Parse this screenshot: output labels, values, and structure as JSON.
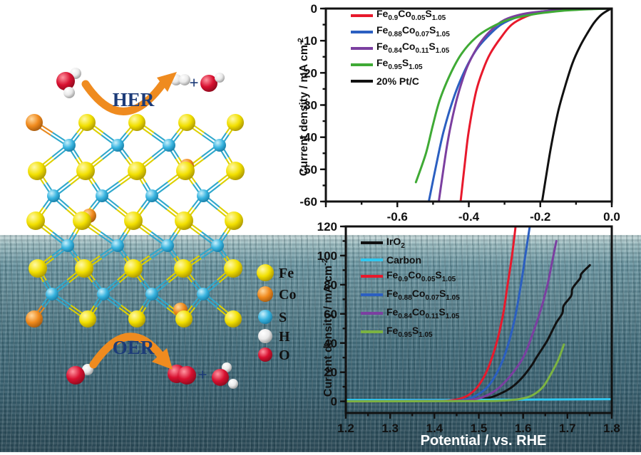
{
  "illustration": {
    "her": {
      "label": "HER",
      "plus": "+"
    },
    "oer": {
      "label": "OER",
      "plus": "+"
    },
    "arrow_color": "#ef8b1f",
    "label_color": "#1c3b78",
    "atom_legend": [
      {
        "element": "Fe",
        "color": "#f2e000"
      },
      {
        "element": "Co",
        "color": "#f08a1d"
      },
      {
        "element": "S",
        "color": "#38b4e0"
      },
      {
        "element": "H",
        "color": "#e9e9e9"
      },
      {
        "element": "O",
        "color": "#d81030"
      }
    ]
  },
  "chart_data": [
    {
      "type": "line",
      "title": "",
      "xlabel": "",
      "ylabel": "Current density / mA cm^{-2}",
      "xlim": [
        -0.8,
        0.0
      ],
      "ylim": [
        -60,
        0
      ],
      "x_major_ticks": [
        -0.8,
        -0.6,
        -0.4,
        -0.2,
        0.0
      ],
      "x_tick_labels": {
        "-0.6": "-0.6",
        "-0.4": "-0.4",
        "-0.2": "-0.2",
        "0": "0.0"
      },
      "x_minor_step": 0.1,
      "y_major_ticks": [
        0,
        -10,
        -20,
        -30,
        -40,
        -50,
        -60
      ],
      "y_minor_step": 5,
      "grid": false,
      "legend_position": "top-left",
      "series": [
        {
          "name": "Fe_{0.9}Co_{0.05}S_{1.05}",
          "color": "#e8192c",
          "points": [
            [
              0,
              0
            ],
            [
              -0.05,
              -0.1
            ],
            [
              -0.1,
              -0.3
            ],
            [
              -0.15,
              -0.6
            ],
            [
              -0.2,
              -1.2
            ],
            [
              -0.24,
              -2.5
            ],
            [
              -0.28,
              -5
            ],
            [
              -0.31,
              -9
            ],
            [
              -0.34,
              -14
            ],
            [
              -0.36,
              -19
            ],
            [
              -0.38,
              -26
            ],
            [
              -0.4,
              -38
            ],
            [
              -0.41,
              -47
            ],
            [
              -0.423,
              -60
            ]
          ]
        },
        {
          "name": "Fe_{0.88}Co_{0.07}S_{1.05}",
          "color": "#2b5fc1",
          "points": [
            [
              0,
              0
            ],
            [
              -0.05,
              -0.1
            ],
            [
              -0.12,
              -0.4
            ],
            [
              -0.2,
              -1.0
            ],
            [
              -0.26,
              -2.5
            ],
            [
              -0.31,
              -5
            ],
            [
              -0.35,
              -9
            ],
            [
              -0.38,
              -13
            ],
            [
              -0.41,
              -19
            ],
            [
              -0.44,
              -27
            ],
            [
              -0.47,
              -38
            ],
            [
              -0.49,
              -48
            ],
            [
              -0.512,
              -60
            ]
          ]
        },
        {
          "name": "Fe_{0.84}Co_{0.11}S_{1.05}",
          "color": "#7b3fa0",
          "points": [
            [
              0,
              0
            ],
            [
              -0.08,
              -0.2
            ],
            [
              -0.16,
              -0.6
            ],
            [
              -0.24,
              -1.5
            ],
            [
              -0.3,
              -3.5
            ],
            [
              -0.34,
              -7
            ],
            [
              -0.37,
              -11
            ],
            [
              -0.4,
              -17
            ],
            [
              -0.42,
              -23
            ],
            [
              -0.44,
              -31
            ],
            [
              -0.46,
              -42
            ],
            [
              -0.484,
              -60
            ]
          ]
        },
        {
          "name": "Fe_{0.95}S_{1.05}",
          "color": "#3faa35",
          "points": [
            [
              0,
              0
            ],
            [
              -0.06,
              -0.2
            ],
            [
              -0.14,
              -0.7
            ],
            [
              -0.22,
              -1.8
            ],
            [
              -0.29,
              -3.5
            ],
            [
              -0.34,
              -6
            ],
            [
              -0.38,
              -9
            ],
            [
              -0.42,
              -14
            ],
            [
              -0.45,
              -20
            ],
            [
              -0.48,
              -28
            ],
            [
              -0.5,
              -36
            ],
            [
              -0.52,
              -45
            ],
            [
              -0.548,
              -54
            ]
          ]
        },
        {
          "name": "20% Pt/C",
          "color": "#111111",
          "points": [
            [
              0,
              0
            ],
            [
              -0.01,
              -0.5
            ],
            [
              -0.03,
              -2
            ],
            [
              -0.05,
              -4.5
            ],
            [
              -0.07,
              -8
            ],
            [
              -0.09,
              -12
            ],
            [
              -0.11,
              -17
            ],
            [
              -0.13,
              -24
            ],
            [
              -0.15,
              -32
            ],
            [
              -0.17,
              -43
            ],
            [
              -0.185,
              -53
            ],
            [
              -0.195,
              -60
            ]
          ]
        }
      ]
    },
    {
      "type": "line",
      "title": "",
      "xlabel": "Potential / vs. RHE",
      "xlabel_color": "#ffffff",
      "ylabel": "Current density / mA cm^{-2}",
      "xlim": [
        1.2,
        1.8
      ],
      "ylim": [
        -8,
        120
      ],
      "x_major_ticks": [
        1.2,
        1.3,
        1.4,
        1.5,
        1.6,
        1.7,
        1.8
      ],
      "x_tick_labels": {
        "1.2": "1.2",
        "1.3": "1.3",
        "1.4": "1.4",
        "1.5": "1.5",
        "1.6": "1.6",
        "1.7": "1.7",
        "1.8": "1.8"
      },
      "x_minor_step": 0.05,
      "y_major_ticks": [
        0,
        20,
        40,
        60,
        80,
        100,
        120
      ],
      "y_minor_step": 10,
      "grid": false,
      "legend_position": "top-left",
      "series": [
        {
          "name": "IrO_{2}",
          "color": "#111111",
          "noise_above": 55,
          "points": [
            [
              1.2,
              0.2
            ],
            [
              1.3,
              0.3
            ],
            [
              1.4,
              0.4
            ],
            [
              1.46,
              0.6
            ],
            [
              1.5,
              1.5
            ],
            [
              1.53,
              3
            ],
            [
              1.56,
              7
            ],
            [
              1.58,
              11
            ],
            [
              1.6,
              17
            ],
            [
              1.62,
              25
            ],
            [
              1.63,
              30
            ],
            [
              1.645,
              37
            ],
            [
              1.655,
              42
            ],
            [
              1.665,
              48
            ],
            [
              1.675,
              54
            ],
            [
              1.685,
              60
            ],
            [
              1.695,
              66
            ],
            [
              1.705,
              72
            ],
            [
              1.715,
              78
            ],
            [
              1.725,
              84
            ],
            [
              1.735,
              88
            ],
            [
              1.747,
              93
            ]
          ]
        },
        {
          "name": "Carbon",
          "color": "#30c8f0",
          "points": [
            [
              1.2,
              1.0
            ],
            [
              1.4,
              1.0
            ],
            [
              1.6,
              1.2
            ],
            [
              1.8,
              1.5
            ]
          ]
        },
        {
          "name": "Fe_{0.9}Co_{0.05}S_{1.05}",
          "color": "#e8192c",
          "points": [
            [
              1.2,
              0
            ],
            [
              1.4,
              0.2
            ],
            [
              1.44,
              0.8
            ],
            [
              1.46,
              2
            ],
            [
              1.48,
              5
            ],
            [
              1.5,
              11
            ],
            [
              1.52,
              22
            ],
            [
              1.54,
              40
            ],
            [
              1.555,
              60
            ],
            [
              1.565,
              80
            ],
            [
              1.575,
              100
            ],
            [
              1.583,
              120
            ]
          ]
        },
        {
          "name": "Fe_{0.88}Co_{0.07}S_{1.05}",
          "color": "#2b5fc1",
          "points": [
            [
              1.2,
              0
            ],
            [
              1.42,
              0.2
            ],
            [
              1.46,
              0.8
            ],
            [
              1.48,
              2
            ],
            [
              1.5,
              5
            ],
            [
              1.52,
              10
            ],
            [
              1.54,
              19
            ],
            [
              1.56,
              33
            ],
            [
              1.58,
              55
            ],
            [
              1.595,
              80
            ],
            [
              1.605,
              100
            ],
            [
              1.615,
              120
            ]
          ]
        },
        {
          "name": "Fe_{0.84}Co_{0.11}S_{1.05}",
          "color": "#7b3fa0",
          "points": [
            [
              1.2,
              0
            ],
            [
              1.44,
              0.3
            ],
            [
              1.48,
              1
            ],
            [
              1.51,
              3
            ],
            [
              1.54,
              8
            ],
            [
              1.57,
              17
            ],
            [
              1.6,
              30
            ],
            [
              1.62,
              45
            ],
            [
              1.64,
              63
            ],
            [
              1.655,
              80
            ],
            [
              1.665,
              95
            ],
            [
              1.675,
              110
            ]
          ]
        },
        {
          "name": "Fe_{0.95}S_{1.05}",
          "color": "#7cb342",
          "points": [
            [
              1.2,
              0
            ],
            [
              1.5,
              0.2
            ],
            [
              1.55,
              0.5
            ],
            [
              1.59,
              1.5
            ],
            [
              1.62,
              4
            ],
            [
              1.645,
              10
            ],
            [
              1.665,
              20
            ],
            [
              1.68,
              29
            ],
            [
              1.692,
              39
            ]
          ]
        }
      ]
    }
  ]
}
